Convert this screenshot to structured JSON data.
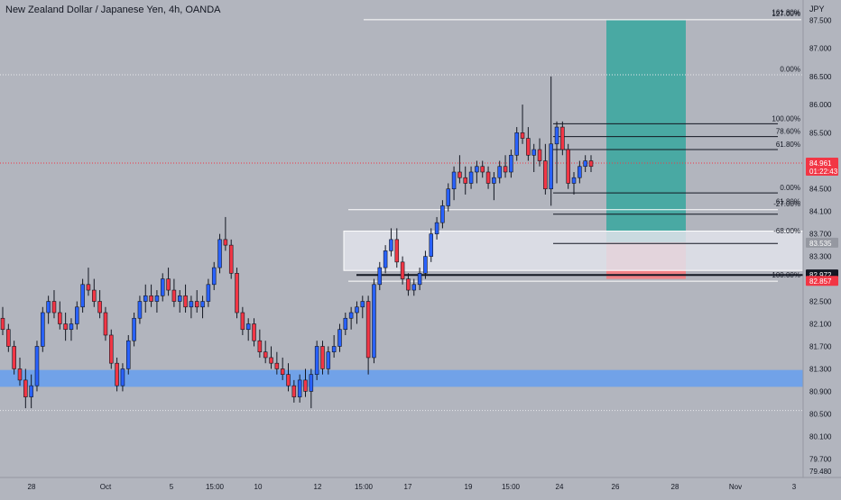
{
  "header": {
    "title": "New Zealand Dollar / Japanese Yen, 4h, OANDA"
  },
  "colors": {
    "background": "#b2b5be",
    "up": "#2962ff",
    "down": "#f23645",
    "wick": "#131722",
    "target_zone": "#26a69a",
    "stop_zone": "#f77c80",
    "support_zone": "#5b9cf6",
    "supply_zone": "#e0e3eb"
  },
  "chart_data": {
    "type": "candlestick",
    "title": "New Zealand Dollar / Japanese Yen, 4h, OANDA",
    "currency": "JPY",
    "ylim": [
      79.4,
      87.7
    ],
    "x_tick_labels": [
      "28",
      "Oct",
      "5",
      "15:00",
      "10",
      "12",
      "15:00",
      "17",
      "19",
      "15:00",
      "24",
      "26",
      "28",
      "Nov",
      "3"
    ],
    "y_tick_labels": [
      "87.500",
      "87.000",
      "86.500",
      "86.000",
      "85.500",
      "85.000",
      "84.500",
      "84.100",
      "83.700",
      "83.300",
      "82.500",
      "82.100",
      "81.700",
      "81.300",
      "80.900",
      "80.500",
      "80.100",
      "79.700",
      "79.480"
    ],
    "price_labels": [
      {
        "label": "84.961",
        "sub": "01:22:43",
        "color": "#f23645"
      },
      {
        "label": "83.535",
        "color": "#9598a1"
      },
      {
        "label": "82.972",
        "color": "#131722"
      },
      {
        "label": "82.857",
        "color": "#f23645"
      }
    ],
    "fib_labels": [
      {
        "label": "0.00%",
        "price": 86.54
      },
      {
        "label": "100.00%",
        "price": 85.66
      },
      {
        "label": "78.60%",
        "price": 85.43
      },
      {
        "label": "61.80%",
        "price": 85.2
      },
      {
        "label": "0.00%",
        "price": 84.43
      },
      {
        "label": "61.80%",
        "price": 84.18
      },
      {
        "label": "-27.00%",
        "price": 84.14
      },
      {
        "label": "-68.00%",
        "price": 83.66
      },
      {
        "label": "100.00%",
        "price": 82.88
      },
      {
        "label": "161.80%",
        "price": 87.55
      },
      {
        "label": "127.00%",
        "price": 87.52
      }
    ],
    "levels": [
      {
        "price": 87.51,
        "style": "solid",
        "color": "#ffffff"
      },
      {
        "price": 86.53,
        "style": "dotted",
        "color": "#e8e9ec"
      },
      {
        "price": 85.66,
        "style": "solid",
        "color": "#131722"
      },
      {
        "price": 85.43,
        "style": "solid",
        "color": "#131722"
      },
      {
        "price": 85.2,
        "style": "solid",
        "color": "#131722"
      },
      {
        "price": 84.96,
        "style": "dotted",
        "color": "#f23645"
      },
      {
        "price": 84.43,
        "style": "solid",
        "color": "#131722"
      },
      {
        "price": 84.13,
        "style": "solid",
        "color": "#ffffff"
      },
      {
        "price": 84.05,
        "style": "solid",
        "color": "#131722"
      },
      {
        "price": 83.53,
        "style": "solid",
        "color": "#131722"
      },
      {
        "price": 82.97,
        "style": "solid",
        "color": "#131722"
      },
      {
        "price": 82.86,
        "style": "solid",
        "color": "#ffffff"
      },
      {
        "price": 80.56,
        "style": "dotted",
        "color": "#e8e9ec"
      }
    ],
    "zones": [
      {
        "name": "target",
        "price_top": 87.5,
        "price_bottom": 83.55,
        "color": "#26a69a",
        "opacity": 0.75
      },
      {
        "name": "stop",
        "price_top": 83.55,
        "price_bottom": 82.9,
        "color": "#f77c80",
        "opacity": 0.9
      },
      {
        "name": "supply",
        "price_top": 83.75,
        "price_bottom": 83.05,
        "color": "#e0e3eb",
        "opacity": 0.85
      },
      {
        "name": "support",
        "price_top": 81.28,
        "price_bottom": 80.98,
        "color": "#5b9cf6",
        "opacity": 0.75
      }
    ],
    "candles": [
      [
        82.2,
        82.4,
        81.9,
        82.0
      ],
      [
        82.0,
        82.1,
        81.6,
        81.7
      ],
      [
        81.7,
        81.8,
        81.2,
        81.3
      ],
      [
        81.3,
        81.5,
        81.0,
        81.1
      ],
      [
        81.1,
        81.3,
        80.6,
        80.8
      ],
      [
        80.8,
        81.2,
        80.6,
        81.0
      ],
      [
        81.0,
        81.8,
        80.9,
        81.7
      ],
      [
        81.7,
        82.4,
        81.6,
        82.3
      ],
      [
        82.3,
        82.6,
        82.1,
        82.5
      ],
      [
        82.5,
        82.7,
        82.2,
        82.3
      ],
      [
        82.3,
        82.5,
        82.0,
        82.1
      ],
      [
        82.1,
        82.3,
        81.8,
        82.0
      ],
      [
        82.0,
        82.2,
        81.8,
        82.1
      ],
      [
        82.1,
        82.5,
        82.0,
        82.4
      ],
      [
        82.4,
        82.9,
        82.3,
        82.8
      ],
      [
        82.8,
        83.1,
        82.6,
        82.7
      ],
      [
        82.7,
        82.9,
        82.4,
        82.5
      ],
      [
        82.5,
        82.7,
        82.2,
        82.3
      ],
      [
        82.3,
        82.4,
        81.8,
        81.9
      ],
      [
        81.9,
        82.0,
        81.3,
        81.4
      ],
      [
        81.4,
        81.5,
        80.9,
        81.0
      ],
      [
        81.0,
        81.4,
        80.9,
        81.3
      ],
      [
        81.3,
        81.9,
        81.2,
        81.8
      ],
      [
        81.8,
        82.3,
        81.7,
        82.2
      ],
      [
        82.2,
        82.6,
        82.1,
        82.5
      ],
      [
        82.5,
        82.8,
        82.3,
        82.6
      ],
      [
        82.6,
        82.8,
        82.4,
        82.5
      ],
      [
        82.5,
        82.7,
        82.3,
        82.6
      ],
      [
        82.6,
        83.0,
        82.5,
        82.9
      ],
      [
        82.9,
        83.1,
        82.6,
        82.7
      ],
      [
        82.7,
        82.9,
        82.4,
        82.5
      ],
      [
        82.5,
        82.7,
        82.3,
        82.6
      ],
      [
        82.6,
        82.8,
        82.3,
        82.4
      ],
      [
        82.4,
        82.6,
        82.2,
        82.5
      ],
      [
        82.5,
        82.7,
        82.3,
        82.4
      ],
      [
        82.4,
        82.6,
        82.2,
        82.5
      ],
      [
        82.5,
        82.9,
        82.4,
        82.8
      ],
      [
        82.8,
        83.2,
        82.7,
        83.1
      ],
      [
        83.1,
        83.7,
        83.0,
        83.6
      ],
      [
        83.6,
        84.0,
        83.4,
        83.5
      ],
      [
        83.5,
        83.6,
        82.9,
        83.0
      ],
      [
        83.0,
        83.1,
        82.2,
        82.3
      ],
      [
        82.3,
        82.4,
        81.9,
        82.0
      ],
      [
        82.0,
        82.2,
        81.8,
        82.1
      ],
      [
        82.1,
        82.2,
        81.7,
        81.8
      ],
      [
        81.8,
        82.0,
        81.5,
        81.6
      ],
      [
        81.6,
        81.8,
        81.4,
        81.5
      ],
      [
        81.5,
        81.7,
        81.3,
        81.4
      ],
      [
        81.4,
        81.6,
        81.2,
        81.3
      ],
      [
        81.3,
        81.5,
        81.1,
        81.2
      ],
      [
        81.2,
        81.4,
        80.9,
        81.0
      ],
      [
        81.0,
        81.1,
        80.7,
        80.8
      ],
      [
        80.8,
        81.2,
        80.7,
        81.1
      ],
      [
        81.1,
        81.3,
        80.8,
        80.9
      ],
      [
        80.9,
        81.3,
        80.6,
        81.2
      ],
      [
        81.2,
        81.8,
        81.1,
        81.7
      ],
      [
        81.7,
        81.8,
        81.2,
        81.3
      ],
      [
        81.3,
        81.7,
        81.2,
        81.6
      ],
      [
        81.6,
        81.9,
        81.5,
        81.7
      ],
      [
        81.7,
        82.1,
        81.6,
        82.0
      ],
      [
        82.0,
        82.3,
        81.9,
        82.2
      ],
      [
        82.2,
        82.4,
        82.0,
        82.3
      ],
      [
        82.3,
        82.5,
        82.1,
        82.4
      ],
      [
        82.4,
        82.6,
        82.2,
        82.5
      ],
      [
        82.5,
        82.6,
        81.2,
        81.5
      ],
      [
        81.5,
        82.9,
        81.4,
        82.8
      ],
      [
        82.8,
        83.2,
        82.7,
        83.1
      ],
      [
        83.1,
        83.5,
        83.0,
        83.4
      ],
      [
        83.4,
        83.8,
        83.3,
        83.6
      ],
      [
        83.6,
        83.8,
        83.1,
        83.2
      ],
      [
        83.2,
        83.3,
        82.8,
        82.9
      ],
      [
        82.9,
        83.0,
        82.6,
        82.7
      ],
      [
        82.7,
        82.9,
        82.6,
        82.8
      ],
      [
        82.8,
        83.1,
        82.7,
        83.0
      ],
      [
        83.0,
        83.4,
        82.9,
        83.3
      ],
      [
        83.3,
        83.8,
        83.2,
        83.7
      ],
      [
        83.7,
        84.0,
        83.6,
        83.9
      ],
      [
        83.9,
        84.3,
        83.8,
        84.2
      ],
      [
        84.2,
        84.6,
        84.1,
        84.5
      ],
      [
        84.5,
        84.9,
        84.3,
        84.8
      ],
      [
        84.8,
        85.1,
        84.6,
        84.7
      ],
      [
        84.7,
        84.9,
        84.4,
        84.6
      ],
      [
        84.6,
        84.9,
        84.5,
        84.8
      ],
      [
        84.8,
        85.0,
        84.6,
        84.9
      ],
      [
        84.9,
        85.0,
        84.7,
        84.8
      ],
      [
        84.8,
        84.9,
        84.5,
        84.6
      ],
      [
        84.6,
        84.8,
        84.3,
        84.7
      ],
      [
        84.7,
        85.0,
        84.6,
        84.9
      ],
      [
        84.9,
        85.1,
        84.7,
        84.8
      ],
      [
        84.8,
        85.2,
        84.7,
        85.1
      ],
      [
        85.1,
        85.6,
        85.0,
        85.5
      ],
      [
        85.5,
        86.0,
        85.3,
        85.4
      ],
      [
        85.4,
        85.6,
        85.0,
        85.1
      ],
      [
        85.1,
        85.3,
        84.8,
        85.2
      ],
      [
        85.2,
        85.4,
        84.9,
        85.0
      ],
      [
        85.0,
        85.3,
        84.4,
        84.5
      ],
      [
        84.5,
        86.5,
        84.2,
        85.3
      ],
      [
        85.3,
        85.7,
        84.6,
        85.6
      ],
      [
        85.6,
        85.7,
        85.1,
        85.2
      ],
      [
        85.2,
        85.3,
        84.5,
        84.6
      ],
      [
        84.6,
        84.8,
        84.4,
        84.7
      ],
      [
        84.7,
        85.0,
        84.6,
        84.9
      ],
      [
        84.9,
        85.1,
        84.8,
        85.0
      ],
      [
        85.0,
        85.1,
        84.8,
        84.9
      ]
    ]
  }
}
